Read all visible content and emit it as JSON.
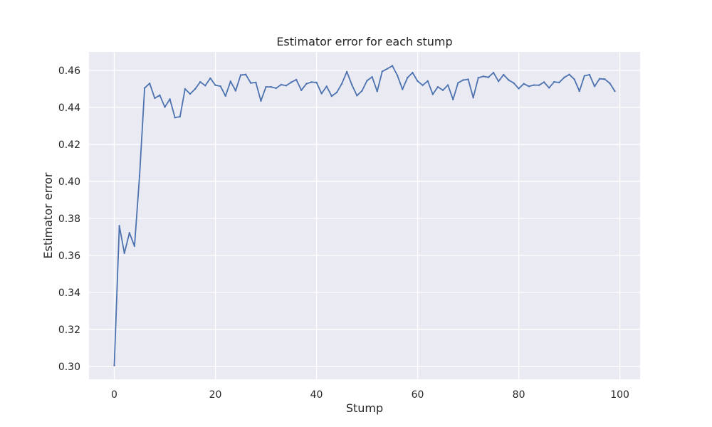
{
  "chart_data": {
    "type": "line",
    "title": "Estimator error for each stump",
    "xlabel": "Stump",
    "ylabel": "Estimator error",
    "xlim": [
      -5,
      104
    ],
    "ylim": [
      0.293,
      0.47
    ],
    "xticks": [
      0,
      20,
      40,
      60,
      80,
      100
    ],
    "yticks": [
      0.3,
      0.32,
      0.34,
      0.36,
      0.38,
      0.4,
      0.42,
      0.44,
      0.46
    ],
    "grid": true,
    "legend": "none",
    "colors": {
      "line": "#4c72b0",
      "background": "#eaeaf2",
      "grid": "#ffffff"
    },
    "series": [
      {
        "x": [
          0,
          1,
          2,
          3,
          4,
          5,
          6,
          7,
          8,
          9,
          10,
          11,
          12,
          13,
          14,
          15,
          16,
          17,
          18,
          19,
          20,
          21,
          22,
          23,
          24,
          25,
          26,
          27,
          28,
          29,
          30,
          31,
          32,
          33,
          34,
          35,
          36,
          37,
          38,
          39,
          40,
          41,
          42,
          43,
          44,
          45,
          46,
          47,
          48,
          49,
          50,
          51,
          52,
          53,
          54,
          55,
          56,
          57,
          58,
          59,
          60,
          61,
          62,
          63,
          64,
          65,
          66,
          67,
          68,
          69,
          70,
          71,
          72,
          73,
          74,
          75,
          76,
          77,
          78,
          79,
          80,
          81,
          82,
          83,
          84,
          85,
          86,
          87,
          88,
          89,
          90,
          91,
          92,
          93,
          94,
          95,
          96,
          97,
          98,
          99
        ],
        "values": [
          0.3005,
          0.376,
          0.3612,
          0.3722,
          0.365,
          0.403,
          0.4505,
          0.453,
          0.445,
          0.4466,
          0.4402,
          0.4445,
          0.4345,
          0.435,
          0.45,
          0.4473,
          0.45,
          0.4538,
          0.4518,
          0.4558,
          0.452,
          0.4515,
          0.4462,
          0.4541,
          0.449,
          0.4575,
          0.4578,
          0.4532,
          0.4535,
          0.4435,
          0.4511,
          0.4511,
          0.4504,
          0.4523,
          0.4518,
          0.4536,
          0.455,
          0.4493,
          0.4528,
          0.4537,
          0.4535,
          0.4475,
          0.4514,
          0.4461,
          0.4481,
          0.4528,
          0.4593,
          0.4522,
          0.4464,
          0.449,
          0.4545,
          0.4565,
          0.4487,
          0.4595,
          0.4609,
          0.4625,
          0.4573,
          0.4498,
          0.4561,
          0.4588,
          0.4542,
          0.452,
          0.4543,
          0.4471,
          0.4511,
          0.4493,
          0.4521,
          0.4443,
          0.4533,
          0.4548,
          0.4552,
          0.4453,
          0.456,
          0.4568,
          0.4563,
          0.4588,
          0.4541,
          0.4577,
          0.4548,
          0.4532,
          0.4502,
          0.4528,
          0.4514,
          0.4521,
          0.452,
          0.4537,
          0.4506,
          0.4538,
          0.4535,
          0.4562,
          0.4578,
          0.4552,
          0.4488,
          0.4571,
          0.4577,
          0.4514,
          0.4555,
          0.4553,
          0.4531,
          0.4488
        ]
      }
    ]
  }
}
